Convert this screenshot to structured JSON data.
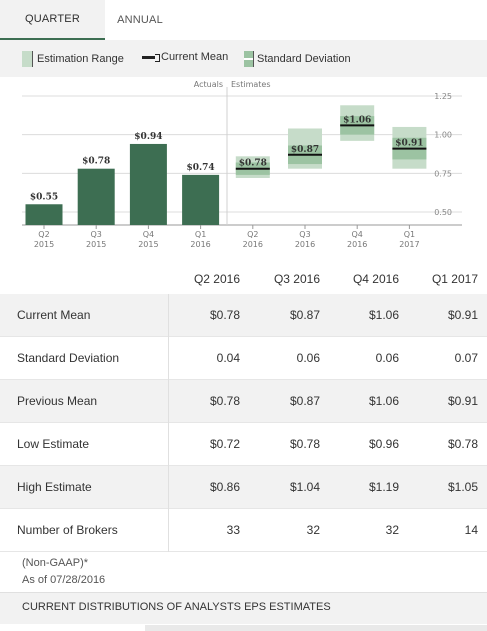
{
  "tabs": {
    "quarter": "QUARTER",
    "annual": "ANNUAL"
  },
  "legend": {
    "estimation_range": "Estimation Range",
    "current_mean": "Current Mean",
    "standard_deviation": "Standard Deviation"
  },
  "chart_data": {
    "type": "bar",
    "section_labels": {
      "actuals": "Actuals",
      "estimates": "Estimates"
    },
    "x_labels": [
      [
        "Q2",
        "2015"
      ],
      [
        "Q3",
        "2015"
      ],
      [
        "Q4",
        "2015"
      ],
      [
        "Q1",
        "2016"
      ],
      [
        "Q2",
        "2016"
      ],
      [
        "Q3",
        "2016"
      ],
      [
        "Q4",
        "2016"
      ],
      [
        "Q1",
        "2017"
      ]
    ],
    "actuals": [
      {
        "label": "$0.55",
        "value": 0.55
      },
      {
        "label": "$0.78",
        "value": 0.78
      },
      {
        "label": "$0.94",
        "value": 0.94
      },
      {
        "label": "$0.74",
        "value": 0.74
      }
    ],
    "estimates": [
      {
        "label": "$0.78",
        "mean": 0.78,
        "low": 0.72,
        "high": 0.86,
        "std": 0.04
      },
      {
        "label": "$0.87",
        "mean": 0.87,
        "low": 0.78,
        "high": 1.04,
        "std": 0.06
      },
      {
        "label": "$1.06",
        "mean": 1.06,
        "low": 0.96,
        "high": 1.19,
        "std": 0.06
      },
      {
        "label": "$0.91",
        "mean": 0.91,
        "low": 0.78,
        "high": 1.05,
        "std": 0.07
      }
    ],
    "y_ticks": [
      "1.25",
      "1.00",
      "0.75",
      "0.50"
    ],
    "ylim": [
      0.4,
      1.25
    ],
    "colors": {
      "bar": "#3d6e52",
      "range": "#c6dcc9",
      "std": "#9cc3a2",
      "mean": "#111111"
    }
  },
  "table": {
    "columns": [
      "Q2 2016",
      "Q3 2016",
      "Q4 2016",
      "Q1 2017"
    ],
    "rows": [
      {
        "label": "Current Mean",
        "values": [
          "$0.78",
          "$0.87",
          "$1.06",
          "$0.91"
        ]
      },
      {
        "label": "Standard Deviation",
        "values": [
          "0.04",
          "0.06",
          "0.06",
          "0.07"
        ]
      },
      {
        "label": "Previous Mean",
        "values": [
          "$0.78",
          "$0.87",
          "$1.06",
          "$0.91"
        ]
      },
      {
        "label": "Low Estimate",
        "values": [
          "$0.72",
          "$0.78",
          "$0.96",
          "$0.78"
        ]
      },
      {
        "label": "High Estimate",
        "values": [
          "$0.86",
          "$1.04",
          "$1.19",
          "$1.05"
        ]
      },
      {
        "label": "Number of Brokers",
        "values": [
          "33",
          "32",
          "32",
          "14"
        ]
      }
    ]
  },
  "footer": {
    "note": "(Non-GAAP)*",
    "as_of": "As of 07/28/2016",
    "distribution_title": "CURRENT DISTRIBUTIONS OF ANALYSTS EPS ESTIMATES"
  }
}
